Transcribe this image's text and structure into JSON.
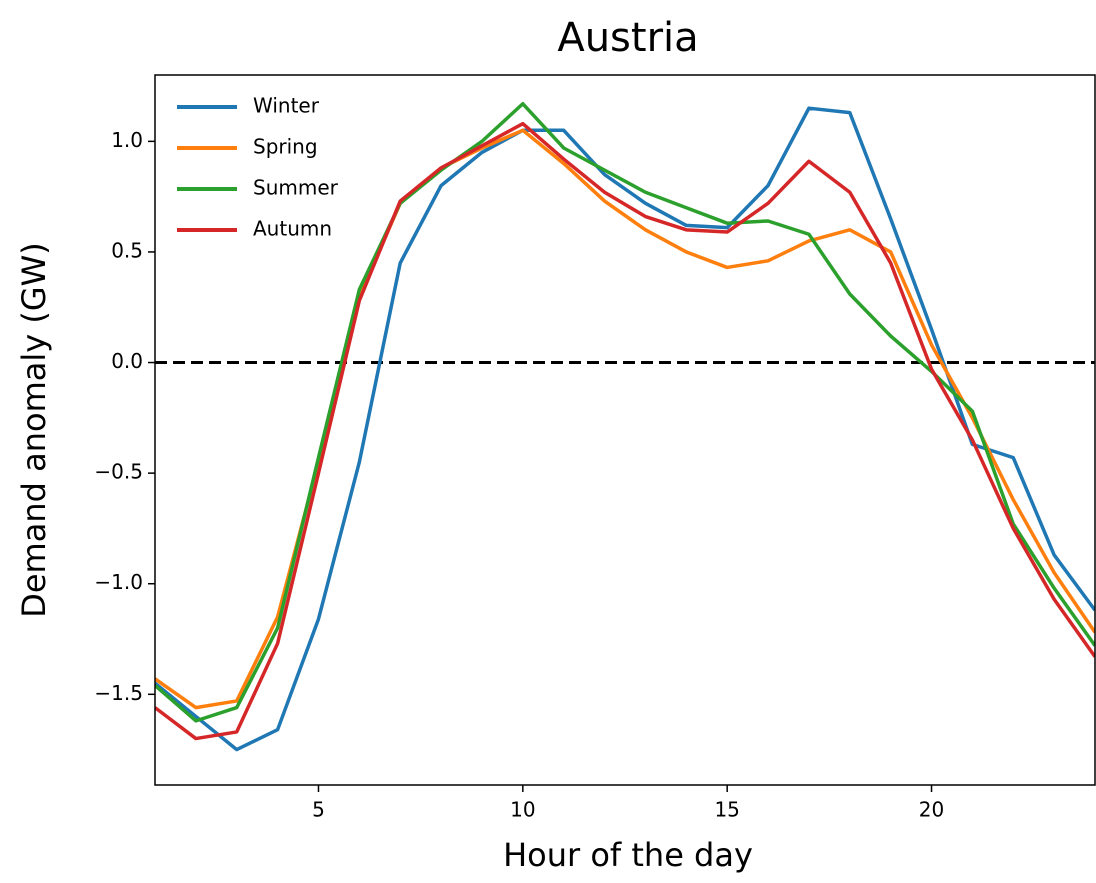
{
  "chart_data": {
    "type": "line",
    "title": "Austria",
    "x_label": "Hour of the day",
    "y_label": "Demand anomaly (GW)",
    "x": [
      1,
      2,
      3,
      4,
      5,
      6,
      7,
      8,
      9,
      10,
      11,
      12,
      13,
      14,
      15,
      16,
      17,
      18,
      19,
      20,
      21,
      22,
      23,
      24
    ],
    "series": [
      {
        "name": "Winter",
        "color": "#1f77b4",
        "values": [
          -1.45,
          -1.6,
          -1.75,
          -1.66,
          -1.16,
          -0.45,
          0.45,
          0.8,
          0.95,
          1.05,
          1.05,
          0.85,
          0.72,
          0.62,
          0.61,
          0.8,
          1.15,
          1.13,
          0.65,
          0.15,
          -0.37,
          -0.43,
          -0.87,
          -1.12
        ]
      },
      {
        "name": "Spring",
        "color": "#ff7f0e",
        "values": [
          -1.43,
          -1.56,
          -1.53,
          -1.15,
          -0.45,
          0.3,
          0.72,
          0.88,
          0.97,
          1.05,
          0.9,
          0.73,
          0.6,
          0.5,
          0.43,
          0.46,
          0.55,
          0.6,
          0.5,
          0.08,
          -0.25,
          -0.62,
          -0.95,
          -1.22
        ]
      },
      {
        "name": "Summer",
        "color": "#2ca02c",
        "values": [
          -1.46,
          -1.62,
          -1.56,
          -1.2,
          -0.43,
          0.33,
          0.72,
          0.87,
          1.0,
          1.17,
          0.97,
          0.87,
          0.77,
          0.7,
          0.63,
          0.64,
          0.58,
          0.31,
          0.12,
          -0.04,
          -0.22,
          -0.73,
          -1.02,
          -1.28
        ]
      },
      {
        "name": "Autumn",
        "color": "#d62728",
        "values": [
          -1.56,
          -1.7,
          -1.67,
          -1.27,
          -0.5,
          0.28,
          0.73,
          0.88,
          0.98,
          1.08,
          0.92,
          0.77,
          0.66,
          0.6,
          0.59,
          0.72,
          0.91,
          0.77,
          0.45,
          -0.03,
          -0.35,
          -0.75,
          -1.07,
          -1.33
        ]
      }
    ],
    "xlim": [
      1,
      24
    ],
    "ylim": [
      -1.91,
      1.3
    ],
    "xticks": [
      5,
      10,
      15,
      20
    ],
    "yticks": [
      {
        "value": -1.5,
        "label": "−1.5"
      },
      {
        "value": -1.0,
        "label": "−1.0"
      },
      {
        "value": -0.5,
        "label": "−0.5"
      },
      {
        "value": 0.0,
        "label": "0.0"
      },
      {
        "value": 0.5,
        "label": "0.5"
      },
      {
        "value": 1.0,
        "label": "1.0"
      }
    ],
    "reference_line": 0,
    "legend": "upper left",
    "grid": false
  }
}
